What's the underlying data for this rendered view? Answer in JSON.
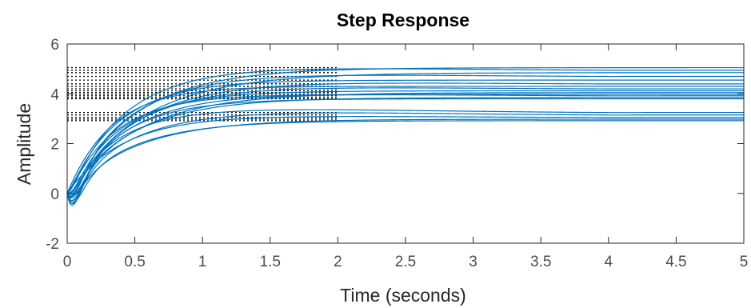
{
  "chart_data": {
    "type": "line",
    "title": "Step Response",
    "xlabel": "Time (seconds)",
    "ylabel": "Amplitude",
    "xlim": [
      0,
      5
    ],
    "ylim": [
      -2,
      6
    ],
    "x_ticks": [
      "0",
      "0.5",
      "1",
      "1.5",
      "2",
      "2.5",
      "3",
      "3.5",
      "4",
      "4.5",
      "5"
    ],
    "y_ticks": [
      "-2",
      "0",
      "2",
      "4",
      "6"
    ],
    "grid": false,
    "line_color": "#0072bd",
    "steady_state_line_color": "#000000",
    "steady_state_line_end_x": 2.0,
    "series": [
      {
        "final": 5.05,
        "tau": 0.5,
        "undershoot": 0.5,
        "overshoot": 0.0
      },
      {
        "final": 4.95,
        "tau": 0.42,
        "undershoot": 0.2,
        "overshoot": 0.05
      },
      {
        "final": 4.85,
        "tau": 0.55,
        "undershoot": 0.3,
        "overshoot": 0.0
      },
      {
        "final": 4.7,
        "tau": 0.45,
        "undershoot": 0.6,
        "overshoot": 0.05
      },
      {
        "final": 4.55,
        "tau": 0.38,
        "undershoot": 0.1,
        "overshoot": 0.0
      },
      {
        "final": 4.4,
        "tau": 0.5,
        "undershoot": 0.4,
        "overshoot": 0.05
      },
      {
        "final": 4.3,
        "tau": 0.33,
        "undershoot": 0.0,
        "overshoot": 0.0
      },
      {
        "final": 4.2,
        "tau": 0.46,
        "undershoot": 0.8,
        "overshoot": 0.05
      },
      {
        "final": 4.12,
        "tau": 0.4,
        "undershoot": 0.3,
        "overshoot": 0.0
      },
      {
        "final": 4.05,
        "tau": 0.52,
        "undershoot": 0.5,
        "overshoot": 0.0
      },
      {
        "final": 3.98,
        "tau": 0.36,
        "undershoot": 0.1,
        "overshoot": 0.0
      },
      {
        "final": 3.92,
        "tau": 0.44,
        "undershoot": 0.7,
        "overshoot": 0.05
      },
      {
        "final": 3.85,
        "tau": 0.48,
        "undershoot": 0.2,
        "overshoot": 0.0
      },
      {
        "final": 3.8,
        "tau": 0.4,
        "undershoot": 0.9,
        "overshoot": 0.0
      },
      {
        "final": 3.25,
        "tau": 0.36,
        "undershoot": 0.3,
        "overshoot": 0.1
      },
      {
        "final": 3.15,
        "tau": 0.44,
        "undershoot": 0.6,
        "overshoot": 0.1
      },
      {
        "final": 3.05,
        "tau": 0.4,
        "undershoot": 0.0,
        "overshoot": 0.05
      },
      {
        "final": 2.98,
        "tau": 0.5,
        "undershoot": 0.4,
        "overshoot": 0.0
      },
      {
        "final": 2.92,
        "tau": 0.46,
        "undershoot": 0.7,
        "overshoot": 0.0
      }
    ]
  }
}
